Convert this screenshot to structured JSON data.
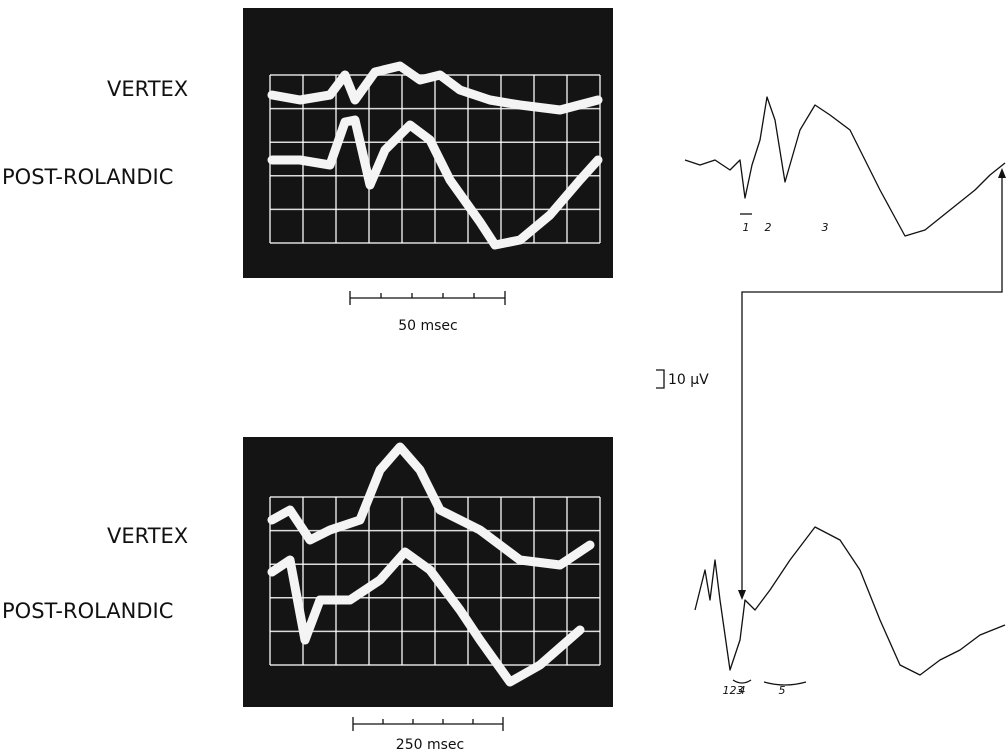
{
  "top_panel": {
    "channel_labels": [
      "VERTEX",
      "POST-ROLANDIC"
    ],
    "scale_label": "50 msec",
    "peak_labels": [
      "1",
      "2",
      "3"
    ]
  },
  "bottom_panel": {
    "channel_labels": [
      "VERTEX",
      "POST-ROLANDIC"
    ],
    "scale_label": "250 msec",
    "peak_labels": [
      "123",
      "4",
      "5"
    ]
  },
  "amplitude_scale": "10 μV"
}
